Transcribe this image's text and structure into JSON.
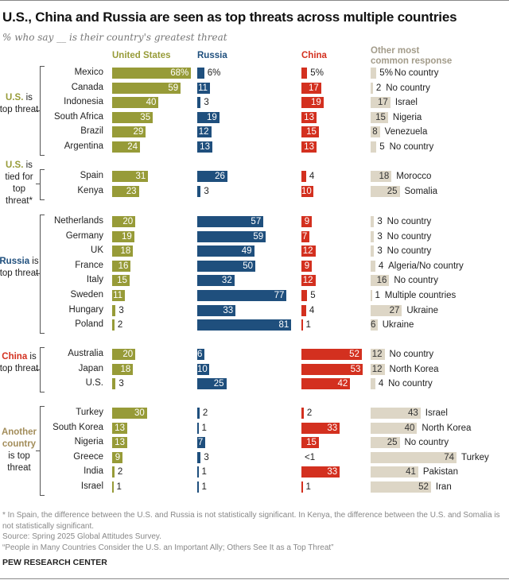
{
  "chart_data": {
    "type": "bar",
    "title": "U.S., China and Russia are seen as top threats across multiple countries",
    "subtitle": "% who say __ is their country's greatest threat",
    "columns": [
      {
        "key": "us",
        "name": "United States",
        "color": "#979b38"
      },
      {
        "key": "russia",
        "name": "Russia",
        "color": "#1f4f7d"
      },
      {
        "key": "china",
        "name": "China",
        "color": "#d3301f"
      },
      {
        "key": "other",
        "name": "Other most common response",
        "color": "#ddd6c6"
      }
    ],
    "groups": [
      {
        "label_strong": "U.S.",
        "label_rest": "is top threat",
        "color": "#979b38",
        "rows": [
          {
            "country": "Mexico",
            "us": "68%",
            "russia": "6%",
            "china": "5%",
            "other": "5%",
            "other_name": "No country"
          },
          {
            "country": "Canada",
            "us": "59",
            "russia": "11",
            "china": "17",
            "other": "2",
            "other_name": "No country"
          },
          {
            "country": "Indonesia",
            "us": "40",
            "russia": "3",
            "china": "19",
            "other": "17",
            "other_name": "Israel"
          },
          {
            "country": "South Africa",
            "us": "35",
            "russia": "19",
            "china": "13",
            "other": "15",
            "other_name": "Nigeria"
          },
          {
            "country": "Brazil",
            "us": "29",
            "russia": "12",
            "china": "15",
            "other": "8",
            "other_name": "Venezuela"
          },
          {
            "country": "Argentina",
            "us": "24",
            "russia": "13",
            "china": "13",
            "other": "5",
            "other_name": "No country"
          }
        ]
      },
      {
        "label_strong": "U.S.",
        "label_rest": "is tied for top threat*",
        "color": "#979b38",
        "rows": [
          {
            "country": "Spain",
            "us": "31",
            "russia": "26",
            "china": "4",
            "other": "18",
            "other_name": "Morocco"
          },
          {
            "country": "Kenya",
            "us": "23",
            "russia": "3",
            "china": "10",
            "other": "25",
            "other_name": "Somalia"
          }
        ]
      },
      {
        "label_strong": "Russia",
        "label_rest": "is top threat",
        "color": "#1f4f7d",
        "rows": [
          {
            "country": "Netherlands",
            "us": "20",
            "russia": "57",
            "china": "9",
            "other": "3",
            "other_name": "No country"
          },
          {
            "country": "Germany",
            "us": "19",
            "russia": "59",
            "china": "7",
            "other": "3",
            "other_name": "No country"
          },
          {
            "country": "UK",
            "us": "18",
            "russia": "49",
            "china": "12",
            "other": "3",
            "other_name": "No country"
          },
          {
            "country": "France",
            "us": "16",
            "russia": "50",
            "china": "9",
            "other": "4",
            "other_name": "Algeria/No country"
          },
          {
            "country": "Italy",
            "us": "15",
            "russia": "32",
            "china": "12",
            "other": "16",
            "other_name": "No country"
          },
          {
            "country": "Sweden",
            "us": "11",
            "russia": "77",
            "china": "5",
            "other": "1",
            "other_name": "Multiple countries"
          },
          {
            "country": "Hungary",
            "us": "3",
            "russia": "33",
            "china": "4",
            "other": "27",
            "other_name": "Ukraine"
          },
          {
            "country": "Poland",
            "us": "2",
            "russia": "81",
            "china": "1",
            "other": "6",
            "other_name": "Ukraine"
          }
        ]
      },
      {
        "label_strong": "China",
        "label_rest": "is top threat",
        "color": "#d3301f",
        "rows": [
          {
            "country": "Australia",
            "us": "20",
            "russia": "6",
            "china": "52",
            "other": "12",
            "other_name": "No country"
          },
          {
            "country": "Japan",
            "us": "18",
            "russia": "10",
            "china": "53",
            "other": "12",
            "other_name": "North Korea"
          },
          {
            "country": "U.S.",
            "us": "3",
            "russia": "25",
            "china": "42",
            "other": "4",
            "other_name": "No country"
          }
        ]
      },
      {
        "label_strong": "Another country",
        "label_rest": "is top threat",
        "color": "#a38d5a",
        "rows": [
          {
            "country": "Turkey",
            "us": "30",
            "russia": "2",
            "china": "2",
            "other": "43",
            "other_name": "Israel"
          },
          {
            "country": "South Korea",
            "us": "13",
            "russia": "1",
            "china": "33",
            "other": "40",
            "other_name": "North Korea"
          },
          {
            "country": "Nigeria",
            "us": "13",
            "russia": "7",
            "china": "15",
            "other": "25",
            "other_name": "No country"
          },
          {
            "country": "Greece",
            "us": "9",
            "russia": "3",
            "china": "<1",
            "other": "74",
            "other_name": "Turkey"
          },
          {
            "country": "India",
            "us": "2",
            "russia": "1",
            "china": "33",
            "other": "41",
            "other_name": "Pakistan"
          },
          {
            "country": "Israel",
            "us": "1",
            "russia": "1",
            "china": "1",
            "other": "52",
            "other_name": "Iran"
          }
        ]
      }
    ]
  },
  "notes": {
    "footnote": "* In Spain, the difference between the U.S. and Russia is not statistically significant. In Kenya, the difference between the U.S. and Somalia is not statistically significant.",
    "source": "Source: Spring 2025 Global Attitudes Survey.",
    "report": "“People in Many Countries Consider the U.S. an Important Ally; Others See It as a Top Threat”"
  },
  "brand": "PEW RESEARCH CENTER",
  "other_header_color": "#a39c8a"
}
